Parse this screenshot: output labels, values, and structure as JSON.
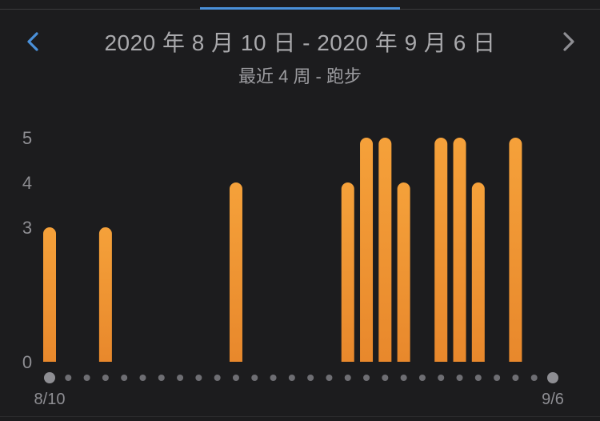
{
  "header": {
    "title": "2020 年 8 月 10 日 - 2020 年 9 月 6 日",
    "subtitle": "最近 4 周 - 跑步"
  },
  "colors": {
    "background": "#1c1c1e",
    "bar_top": "#f5a13a",
    "bar_bottom": "#e8882c",
    "accent": "#4a90d9",
    "dot": "#8e8e93"
  },
  "icons": {
    "prev": "chevron-left-icon",
    "next": "chevron-right-icon"
  },
  "chart_data": {
    "type": "bar",
    "title": "",
    "xlabel": "",
    "ylabel": "",
    "categories": [
      "8/10",
      "8/11",
      "8/12",
      "8/13",
      "8/14",
      "8/15",
      "8/16",
      "8/17",
      "8/18",
      "8/19",
      "8/20",
      "8/21",
      "8/22",
      "8/23",
      "8/24",
      "8/25",
      "8/26",
      "8/27",
      "8/28",
      "8/29",
      "8/30",
      "8/31",
      "9/1",
      "9/2",
      "9/3",
      "9/4",
      "9/5",
      "9/6"
    ],
    "values": [
      3,
      0,
      0,
      3,
      0,
      0,
      0,
      0,
      0,
      0,
      4,
      0,
      0,
      0,
      0,
      0,
      4,
      5,
      5,
      4,
      0,
      5,
      5,
      4,
      0,
      5,
      0,
      0
    ],
    "yticks": [
      0,
      3,
      4,
      5
    ],
    "ylim": [
      0,
      5
    ],
    "x_tick_labels": [
      "8/10",
      "9/6"
    ]
  }
}
